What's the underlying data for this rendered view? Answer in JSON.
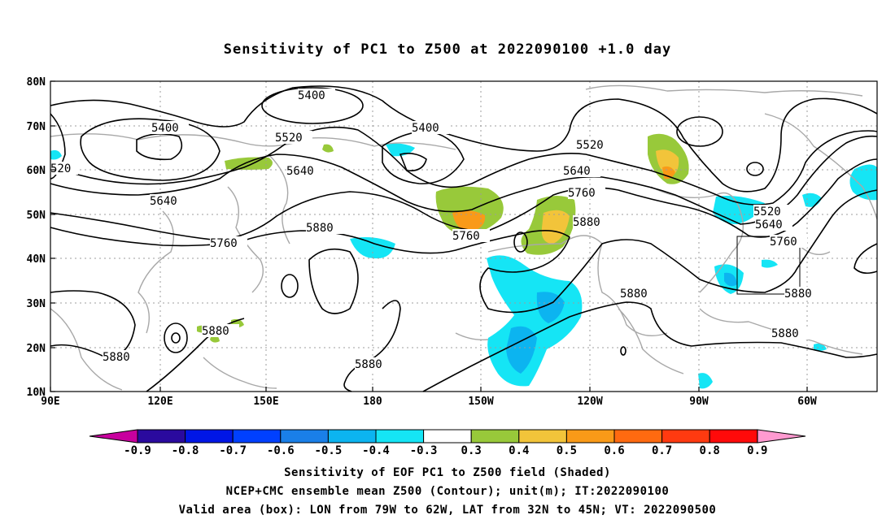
{
  "title": "Sensitivity of PC1 to Z500 at 2022090100 +1.0 day",
  "lat_labels": [
    "80N",
    "70N",
    "60N",
    "50N",
    "40N",
    "30N",
    "20N",
    "10N"
  ],
  "lon_labels": [
    "90E",
    "120E",
    "150E",
    "180",
    "150W",
    "120W",
    "90W",
    "60W"
  ],
  "contour_labels": [
    "5400",
    "5400",
    "5400",
    "5520",
    "5520",
    "5520",
    "520",
    "5640",
    "5640",
    "5640",
    "5640",
    "5760",
    "5760",
    "5760",
    "5760",
    "5880",
    "5880",
    "5880",
    "5880",
    "5880",
    "5880",
    "5880",
    "5880"
  ],
  "colorbar": {
    "labels": [
      "-0.9",
      "-0.8",
      "-0.7",
      "-0.6",
      "-0.5",
      "-0.4",
      "-0.3",
      "0.3",
      "0.4",
      "0.5",
      "0.6",
      "0.7",
      "0.8",
      "0.9"
    ],
    "colors": [
      "#2a0a9e",
      "#0016e6",
      "#0040ff",
      "#1a7fe8",
      "#0cb4f0",
      "#15e5f5",
      "#ffffff",
      "#98c93a",
      "#f2c43a",
      "#f99a18",
      "#ff6a10",
      "#ff3a10",
      "#ff0a0a"
    ],
    "low_arrow_color": "#c8009e",
    "high_arrow_color": "#ff9ad0"
  },
  "captions": {
    "line1": "Sensitivity of EOF PC1 to Z500 field (Shaded)",
    "line2": "NCEP+CMC ensemble mean Z500 (Contour); unit(m); IT:2022090100",
    "line3": "Valid area (box): LON from 79W to 62W, LAT from 32N to 45N; VT: 2022090500"
  }
}
